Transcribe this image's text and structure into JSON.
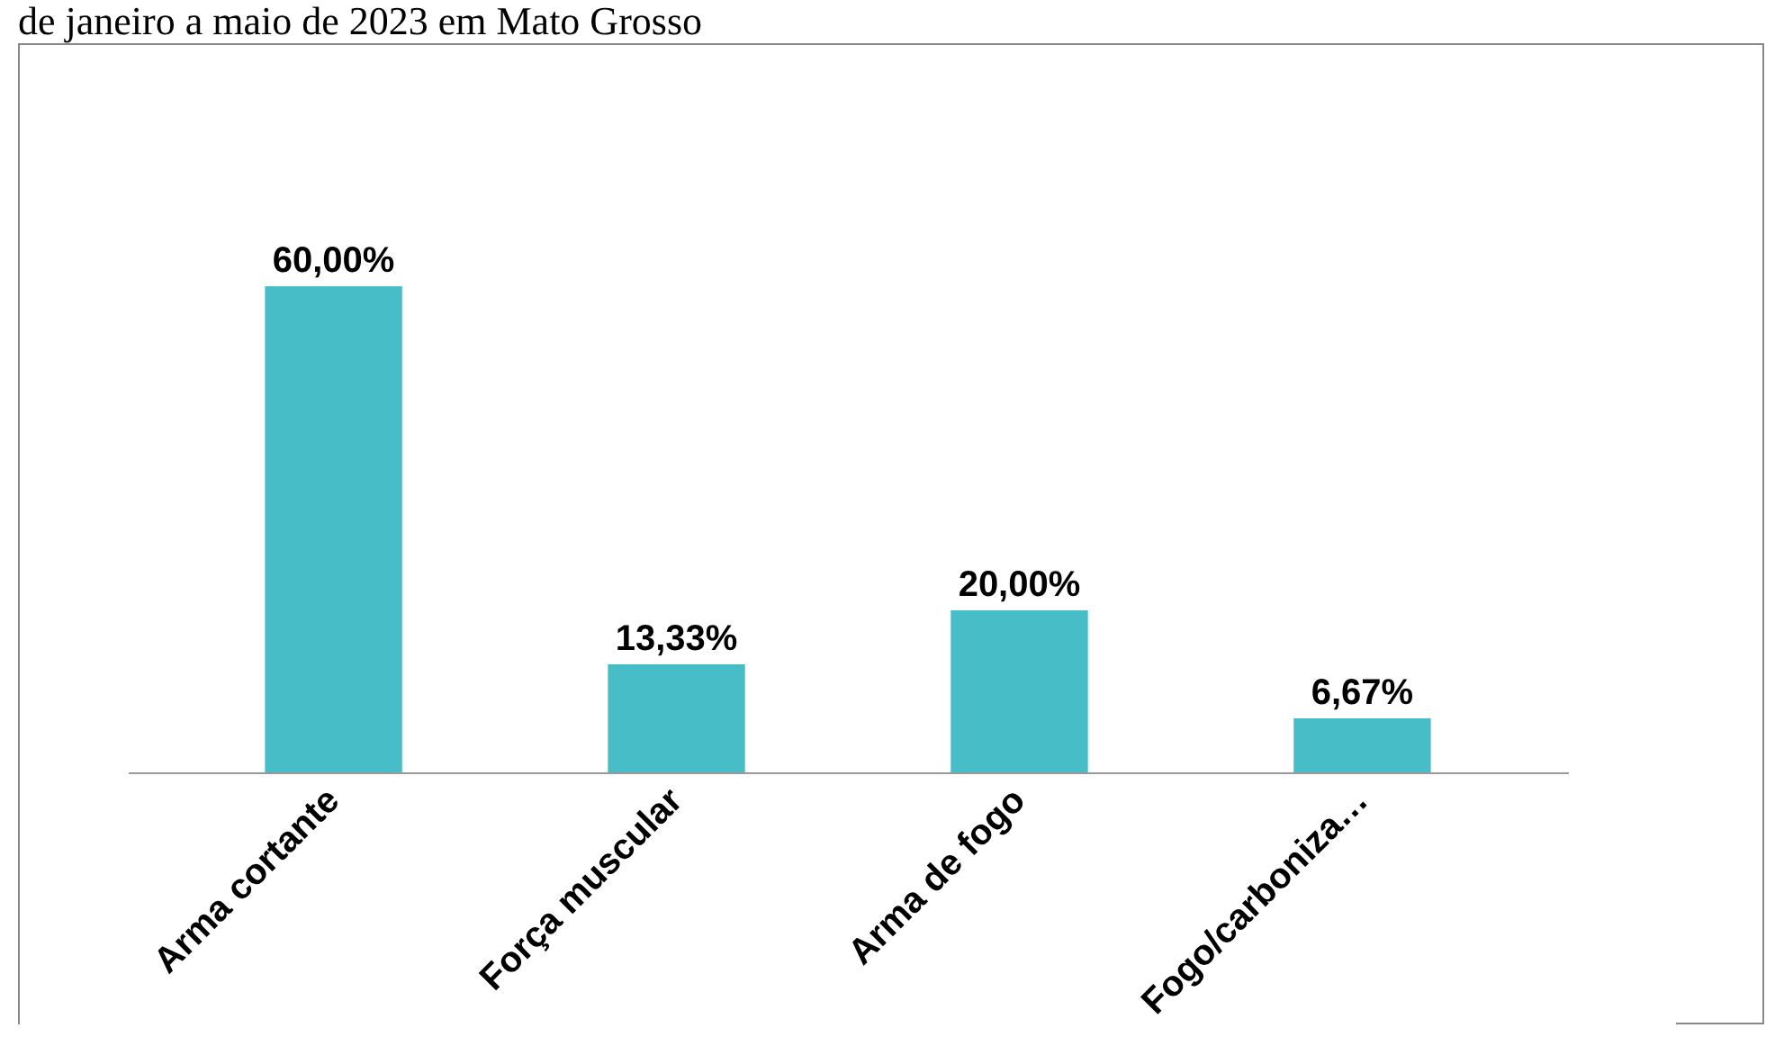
{
  "chart_data": {
    "type": "bar",
    "title": "de janeiro a maio de 2023 em Mato Grosso",
    "categories": [
      "Arma cortante",
      "Força muscular",
      "Arma de fogo",
      "Fogo/carboniza…"
    ],
    "values": [
      60,
      13.33,
      20,
      6.67
    ],
    "value_labels": [
      "60,00%",
      "13,33%",
      "20,00%",
      "6,67%"
    ],
    "color": "#47bdc7"
  }
}
